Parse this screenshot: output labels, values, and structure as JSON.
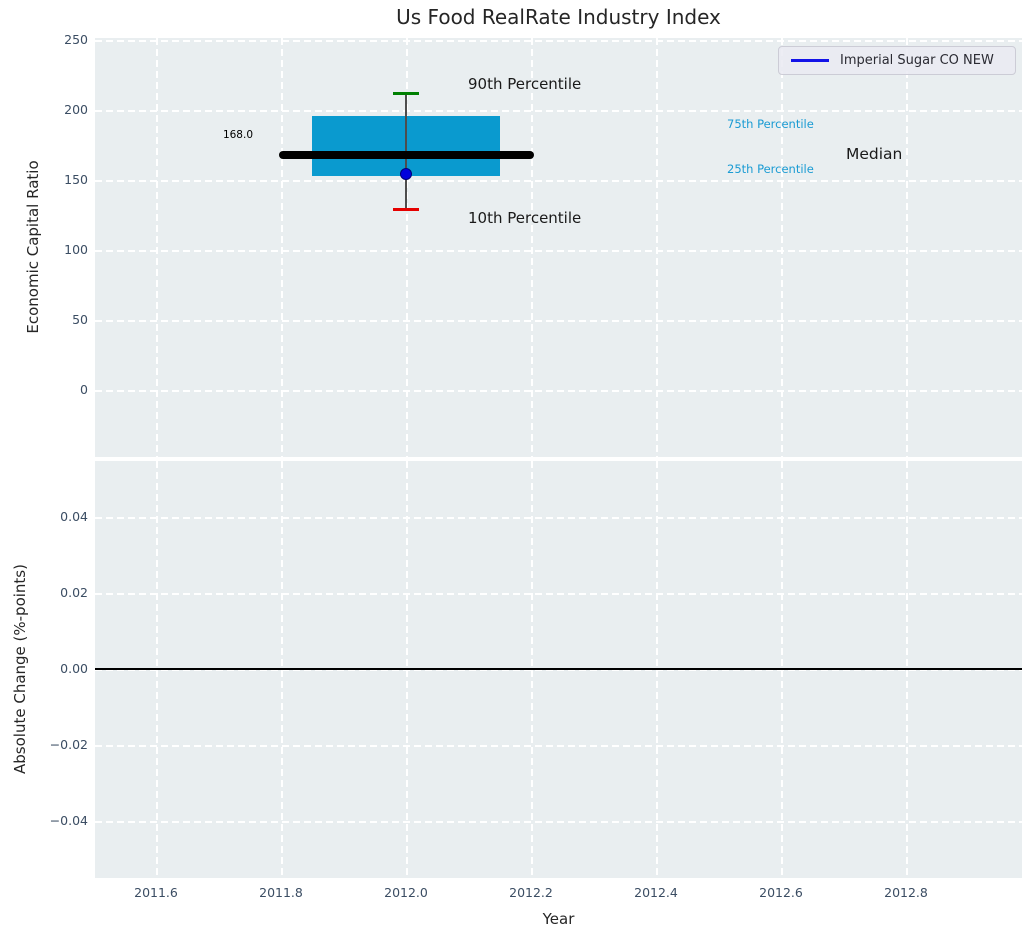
{
  "title": "Us Food RealRate Industry Index",
  "legend": {
    "label": "Imperial Sugar CO NEW"
  },
  "labels": {
    "p90": "90th Percentile",
    "p10": "10th Percentile",
    "p75": "75th Percentile",
    "p25": "25th Percentile",
    "median": "Median",
    "median_value": "168.0"
  },
  "colors": {
    "axes_bg": "#e9eef0",
    "tick_text": "#3b4d63",
    "box_fill": "#0a9acf",
    "percentile_text": "#1a9bd3",
    "whisker": "#4d4d4d",
    "cap_high": "#008002",
    "cap_low": "#e50000",
    "median_line": "#000000",
    "marker_fill": "#0202dd",
    "marker_edge": "#00007a",
    "legend_line": "#1313e8",
    "zero_line": "#000000"
  },
  "chart_data": [
    {
      "type": "boxplot",
      "title": "Us Food RealRate Industry Index",
      "xlabel": "Year",
      "ylabel": "Economic Capital Ratio",
      "grid": true,
      "legend_position": "upper right",
      "series_name": "Imperial Sugar CO NEW",
      "x_center": 2012.0,
      "stats": {
        "p90": 212,
        "p75": 196,
        "median": 168.0,
        "p25": 153,
        "p10": 129
      },
      "company_marker_value": 154,
      "median_data_label": "168.0",
      "x_ticks": [
        {
          "value": 2011.6,
          "label": "2011.6"
        },
        {
          "value": 2011.8,
          "label": "2011.8"
        },
        {
          "value": 2012.0,
          "label": "2012.0"
        },
        {
          "value": 2012.2,
          "label": "2012.2"
        },
        {
          "value": 2012.4,
          "label": "2012.4"
        },
        {
          "value": 2012.6,
          "label": "2012.6"
        },
        {
          "value": 2012.8,
          "label": "2012.8"
        }
      ],
      "y_ticks": [
        {
          "value": 250,
          "label": "250"
        },
        {
          "value": 200,
          "label": "200"
        },
        {
          "value": 150,
          "label": "150"
        },
        {
          "value": 100,
          "label": "100"
        },
        {
          "value": 50,
          "label": "50"
        },
        {
          "value": 0,
          "label": "0"
        }
      ],
      "xlim": [
        2011.5,
        2012.99
      ],
      "ylim": [
        -48,
        251
      ]
    },
    {
      "type": "line",
      "xlabel": "Year",
      "ylabel": "Absolute Change (%-points)",
      "grid": true,
      "zero_line_value": 0.0,
      "y_ticks": [
        {
          "value": 0.04,
          "label": "0.04"
        },
        {
          "value": 0.02,
          "label": "0.02"
        },
        {
          "value": 0.0,
          "label": "0.00"
        },
        {
          "value": -0.02,
          "label": "−0.02"
        },
        {
          "value": -0.04,
          "label": "−0.04"
        }
      ],
      "ylim": [
        -0.055,
        0.055
      ]
    }
  ]
}
